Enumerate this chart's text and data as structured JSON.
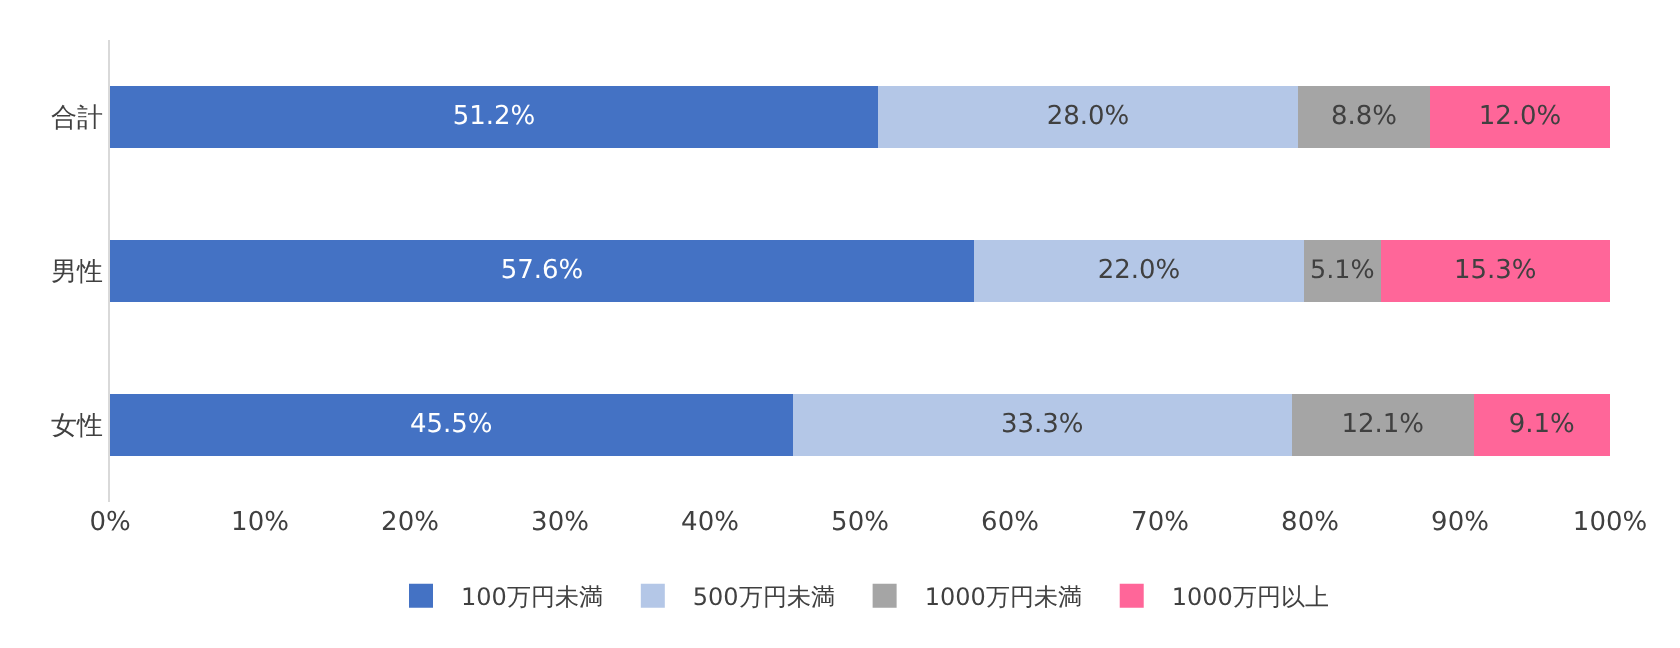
{
  "chart_data": {
    "type": "bar",
    "orientation": "horizontal",
    "stacked": true,
    "categories": [
      "合計",
      "男性",
      "女性"
    ],
    "series": [
      {
        "name": "100万円未満",
        "color": "#4472c4",
        "values": [
          51.2,
          57.6,
          45.5
        ],
        "value_labels": [
          "51.2%",
          "57.6%",
          "45.5%"
        ]
      },
      {
        "name": "500万円未満",
        "color": "#b4c7e7",
        "values": [
          28.0,
          22.0,
          33.3
        ],
        "value_labels": [
          "28.0%",
          "22.0%",
          "33.3%"
        ]
      },
      {
        "name": "1000万円未満",
        "color": "#a5a5a5",
        "values": [
          8.8,
          5.1,
          12.1
        ],
        "value_labels": [
          "8.8%",
          "5.1%",
          "12.1%"
        ]
      },
      {
        "name": "1000万円以上",
        "color": "#ff6699",
        "values": [
          12.0,
          15.3,
          9.1
        ],
        "value_labels": [
          "12.0%",
          "15.3%",
          "9.1%"
        ]
      }
    ],
    "xlim": [
      0,
      100
    ],
    "xticks": [
      {
        "value": 0,
        "label": "0%"
      },
      {
        "value": 10,
        "label": "10%"
      },
      {
        "value": 20,
        "label": "20%"
      },
      {
        "value": 30,
        "label": "30%"
      },
      {
        "value": 40,
        "label": "40%"
      },
      {
        "value": 50,
        "label": "50%"
      },
      {
        "value": 60,
        "label": "60%"
      },
      {
        "value": 70,
        "label": "70%"
      },
      {
        "value": 80,
        "label": "80%"
      },
      {
        "value": 90,
        "label": "90%"
      },
      {
        "value": 100,
        "label": "100%"
      }
    ],
    "grid": false,
    "legend": "bottom"
  }
}
